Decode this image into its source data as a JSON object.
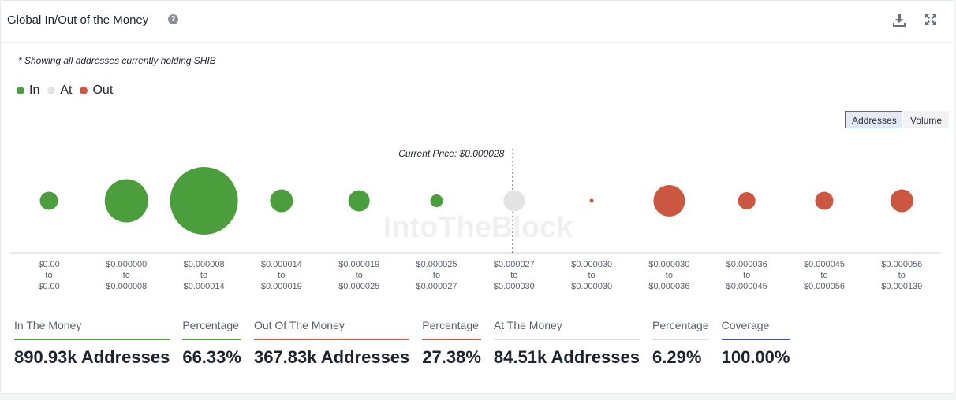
{
  "header": {
    "title": "Global In/Out of the Money",
    "help_icon": "help-icon",
    "download_icon": "download-icon",
    "expand_icon": "expand-icon"
  },
  "note": "* Showing all addresses currently holding SHIB",
  "legend": [
    {
      "label": "In",
      "color": "#4a9e3b"
    },
    {
      "label": "At",
      "color": "#e3e3e3"
    },
    {
      "label": "Out",
      "color": "#cc5740"
    }
  ],
  "toggle": {
    "active": "Addresses",
    "inactive": "Volume"
  },
  "watermark": "IntoTheBlock",
  "chart_data": {
    "type": "bubble",
    "current_price_label": "Current Price: $0.000028",
    "current_price_index": 6,
    "buckets": [
      {
        "from": "$0.00",
        "to": "$0.00",
        "status": "in",
        "size": 23
      },
      {
        "from": "$0.000000",
        "to": "$0.000008",
        "status": "in",
        "size": 55
      },
      {
        "from": "$0.000008",
        "to": "$0.000014",
        "status": "in",
        "size": 86
      },
      {
        "from": "$0.000014",
        "to": "$0.000019",
        "status": "in",
        "size": 29
      },
      {
        "from": "$0.000019",
        "to": "$0.000025",
        "status": "in",
        "size": 27
      },
      {
        "from": "$0.000025",
        "to": "$0.000027",
        "status": "in",
        "size": 16
      },
      {
        "from": "$0.000027",
        "to": "$0.000030",
        "status": "at",
        "size": 27
      },
      {
        "from": "$0.000030",
        "to": "$0.000030",
        "status": "out",
        "size": 5
      },
      {
        "from": "$0.000030",
        "to": "$0.000036",
        "status": "out",
        "size": 40
      },
      {
        "from": "$0.000036",
        "to": "$0.000045",
        "status": "out",
        "size": 22
      },
      {
        "from": "$0.000045",
        "to": "$0.000056",
        "status": "out",
        "size": 23
      },
      {
        "from": "$0.000056",
        "to": "$0.000139",
        "status": "out",
        "size": 29
      }
    ],
    "to_word": "to"
  },
  "stats": [
    {
      "label": "In The Money",
      "value": "890.93k Addresses",
      "color": "#4a9e3b"
    },
    {
      "label": "Percentage",
      "value": "66.33%",
      "color": "#4a9e3b"
    },
    {
      "label": "Out Of The Money",
      "value": "367.83k Addresses",
      "color": "#cc5740"
    },
    {
      "label": "Percentage",
      "value": "27.38%",
      "color": "#cc5740"
    },
    {
      "label": "At The Money",
      "value": "84.51k Addresses",
      "color": "#dcdcdc"
    },
    {
      "label": "Percentage",
      "value": "6.29%",
      "color": "#dcdcdc"
    },
    {
      "label": "Coverage",
      "value": "100.00%",
      "color": "#3b4fb8"
    }
  ]
}
